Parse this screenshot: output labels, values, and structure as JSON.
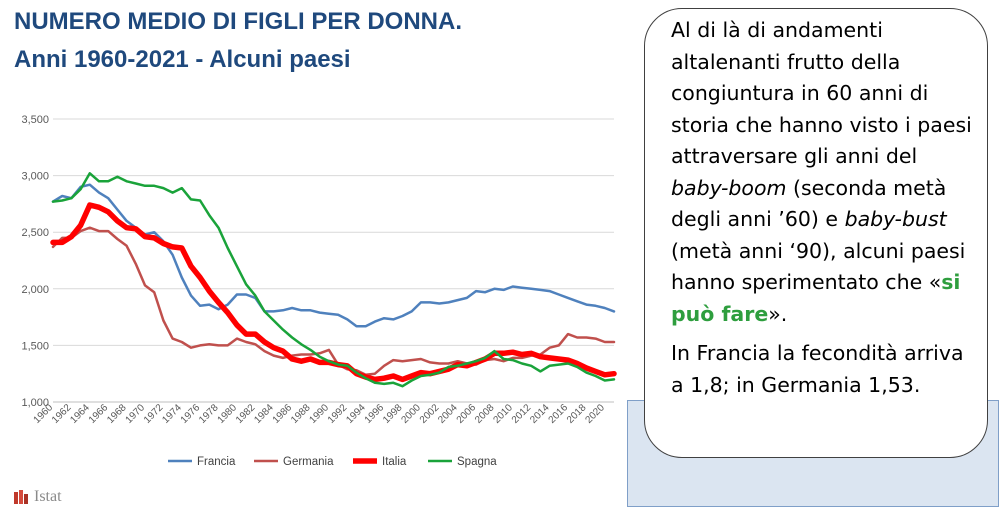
{
  "title": "NUMERO MEDIO DI FIGLI PER DONNA.",
  "subtitle": "Anni 1960-2021 - Alcuni paesi",
  "callout": {
    "p1_a": "Al di là di andamenti altalenanti frutto della congiuntura in 60 anni di storia che hanno visto i paesi attraversare gli anni del ",
    "p1_b": "baby-boom",
    "p1_c": " (seconda metà degli anni ’60) e ",
    "p1_d": "baby-bust",
    "p1_e": " (metà anni ‘90), alcuni paesi hanno sperimentato che «",
    "p1_f": "si può fare",
    "p1_g": "».",
    "p2": "In Francia la fecondità arriva a 1,8; in Germania 1,53."
  },
  "logo": {
    "text": "Istat",
    "icon": "istat-logo-icon"
  },
  "colors": {
    "title": "#1f497d",
    "Francia": "#4f81bd",
    "Germania": "#c0504d",
    "Italia": "#ff0000",
    "Spagna": "#1aa33a",
    "callout_highlight": "#2e9e3e",
    "box": "#dbe5f1"
  },
  "chart_data": {
    "type": "line",
    "title": "",
    "xlabel": "",
    "ylabel": "",
    "ylim": [
      1000,
      3500
    ],
    "yticks": [
      "1,000",
      "1,500",
      "2,000",
      "2,500",
      "3,000",
      "3,500"
    ],
    "xticks": [
      "1960",
      "1962",
      "1964",
      "1966",
      "1968",
      "1970",
      "1972",
      "1974",
      "1976",
      "1978",
      "1980",
      "1982",
      "1984",
      "1986",
      "1988",
      "1990",
      "1992",
      "1994",
      "1996",
      "1998",
      "2000",
      "2002",
      "2004",
      "2006",
      "2008",
      "2010",
      "2012",
      "2014",
      "2016",
      "2018",
      "2020"
    ],
    "grid": "horizontal",
    "legend_position": "bottom",
    "x": [
      1960,
      1961,
      1962,
      1963,
      1964,
      1965,
      1966,
      1967,
      1968,
      1969,
      1970,
      1971,
      1972,
      1973,
      1974,
      1975,
      1976,
      1977,
      1978,
      1979,
      1980,
      1981,
      1982,
      1983,
      1984,
      1985,
      1986,
      1987,
      1988,
      1989,
      1990,
      1991,
      1992,
      1993,
      1994,
      1995,
      1996,
      1997,
      1998,
      1999,
      2000,
      2001,
      2002,
      2003,
      2004,
      2005,
      2006,
      2007,
      2008,
      2009,
      2010,
      2011,
      2012,
      2013,
      2014,
      2015,
      2016,
      2017,
      2018,
      2019,
      2020,
      2021
    ],
    "series": [
      {
        "name": "Francia",
        "values": [
          2770,
          2820,
          2800,
          2900,
          2920,
          2850,
          2800,
          2700,
          2600,
          2540,
          2480,
          2500,
          2420,
          2300,
          2100,
          1940,
          1850,
          1860,
          1820,
          1860,
          1950,
          1950,
          1920,
          1800,
          1800,
          1810,
          1830,
          1810,
          1810,
          1790,
          1780,
          1770,
          1730,
          1670,
          1670,
          1710,
          1740,
          1730,
          1760,
          1800,
          1880,
          1880,
          1870,
          1880,
          1900,
          1920,
          1980,
          1970,
          2000,
          1990,
          2020,
          2010,
          2000,
          1990,
          1980,
          1950,
          1920,
          1890,
          1860,
          1850,
          1830,
          1800
        ]
      },
      {
        "name": "Germania",
        "values": [
          2370,
          2450,
          2450,
          2510,
          2540,
          2510,
          2510,
          2440,
          2380,
          2220,
          2030,
          1970,
          1720,
          1560,
          1530,
          1480,
          1500,
          1510,
          1500,
          1500,
          1560,
          1530,
          1510,
          1450,
          1410,
          1390,
          1410,
          1420,
          1420,
          1430,
          1460,
          1330,
          1290,
          1280,
          1240,
          1250,
          1320,
          1370,
          1360,
          1370,
          1380,
          1350,
          1340,
          1340,
          1360,
          1340,
          1330,
          1370,
          1380,
          1360,
          1390,
          1390,
          1410,
          1420,
          1480,
          1500,
          1600,
          1570,
          1570,
          1560,
          1530,
          1530
        ]
      },
      {
        "name": "Italia",
        "values": [
          2410,
          2410,
          2460,
          2560,
          2740,
          2720,
          2680,
          2600,
          2540,
          2530,
          2460,
          2450,
          2400,
          2370,
          2360,
          2200,
          2100,
          1980,
          1880,
          1790,
          1680,
          1600,
          1600,
          1530,
          1480,
          1450,
          1380,
          1360,
          1380,
          1350,
          1350,
          1330,
          1320,
          1250,
          1220,
          1200,
          1210,
          1230,
          1200,
          1230,
          1260,
          1250,
          1270,
          1290,
          1330,
          1320,
          1350,
          1380,
          1430,
          1430,
          1440,
          1420,
          1430,
          1400,
          1390,
          1380,
          1370,
          1340,
          1300,
          1270,
          1240,
          1250
        ]
      },
      {
        "name": "Spagna",
        "values": [
          2770,
          2780,
          2800,
          2880,
          3020,
          2950,
          2950,
          2990,
          2950,
          2930,
          2910,
          2910,
          2890,
          2850,
          2890,
          2790,
          2780,
          2650,
          2540,
          2360,
          2200,
          2040,
          1940,
          1800,
          1720,
          1640,
          1570,
          1510,
          1460,
          1400,
          1360,
          1330,
          1320,
          1260,
          1210,
          1170,
          1160,
          1170,
          1140,
          1190,
          1230,
          1240,
          1260,
          1310,
          1320,
          1340,
          1360,
          1390,
          1450,
          1380,
          1370,
          1340,
          1320,
          1270,
          1320,
          1330,
          1340,
          1310,
          1260,
          1230,
          1190,
          1200
        ]
      }
    ]
  }
}
